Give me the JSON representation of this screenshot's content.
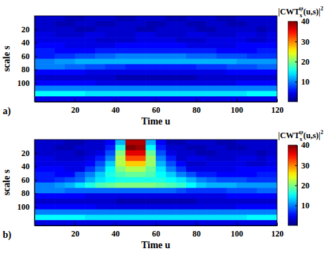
{
  "chart_data": [
    {
      "type": "heatmap",
      "panel_label": "a)",
      "x_label": "Time u",
      "y_label": "scale s",
      "xlim": [
        0,
        120
      ],
      "xticks": [
        20,
        40,
        60,
        80,
        100,
        120
      ],
      "ylim": [
        0,
        128
      ],
      "yticks": [
        20,
        40,
        60,
        80,
        100
      ],
      "x": [
        2.5,
        7.5,
        12.5,
        17.5,
        22.5,
        27.5,
        32.5,
        37.5,
        42.5,
        47.5,
        52.5,
        57.5,
        62.5,
        67.5,
        72.5,
        77.5,
        82.5,
        87.5,
        92.5,
        97.5,
        102.5,
        107.5,
        112.5,
        117.5
      ],
      "y": [
        4,
        12,
        20,
        28,
        36,
        44,
        52,
        60,
        68,
        76,
        84,
        92,
        100,
        108,
        116,
        124
      ],
      "z": [
        [
          3,
          3,
          3,
          2,
          2,
          3,
          3,
          3,
          2,
          2,
          3,
          3,
          3,
          2,
          2,
          3,
          3,
          3,
          2,
          2,
          3,
          3,
          3,
          3
        ],
        [
          3,
          3,
          2,
          2,
          3,
          3,
          2,
          2,
          3,
          3,
          3,
          2,
          2,
          3,
          3,
          2,
          2,
          3,
          3,
          2,
          2,
          3,
          3,
          3
        ],
        [
          3,
          3,
          3,
          3,
          2,
          2,
          3,
          3,
          3,
          3,
          2,
          2,
          3,
          3,
          3,
          3,
          2,
          2,
          3,
          3,
          3,
          3,
          2,
          3
        ],
        [
          4,
          4,
          3,
          3,
          3,
          4,
          4,
          3,
          3,
          3,
          4,
          4,
          3,
          3,
          3,
          4,
          4,
          3,
          3,
          3,
          4,
          4,
          3,
          4
        ],
        [
          4,
          4,
          4,
          4,
          4,
          4,
          3,
          3,
          3,
          3,
          4,
          4,
          4,
          4,
          3,
          3,
          3,
          4,
          4,
          4,
          4,
          3,
          3,
          4
        ],
        [
          5,
          5,
          5,
          4,
          4,
          4,
          4,
          4,
          5,
          5,
          5,
          5,
          5,
          5,
          5,
          4,
          4,
          4,
          4,
          4,
          5,
          5,
          5,
          5
        ],
        [
          6,
          6,
          5,
          5,
          5,
          5,
          6,
          6,
          6,
          6,
          6,
          6,
          6,
          6,
          6,
          6,
          6,
          6,
          5,
          5,
          5,
          5,
          6,
          6
        ],
        [
          6,
          6,
          7,
          7,
          8,
          8,
          9,
          9,
          10,
          10,
          10,
          10,
          10,
          10,
          10,
          9,
          9,
          9,
          8,
          8,
          8,
          7,
          7,
          7
        ],
        [
          10,
          10,
          11,
          11,
          12,
          12,
          12,
          12,
          12,
          12,
          12,
          12,
          12,
          12,
          12,
          12,
          12,
          12,
          12,
          12,
          11,
          11,
          11,
          11
        ],
        [
          10,
          10,
          10,
          9,
          9,
          8,
          8,
          7,
          7,
          6,
          6,
          6,
          6,
          6,
          6,
          6,
          7,
          7,
          7,
          8,
          8,
          8,
          9,
          9
        ],
        [
          5,
          5,
          5,
          5,
          5,
          4,
          4,
          4,
          4,
          4,
          4,
          4,
          4,
          4,
          4,
          4,
          4,
          4,
          4,
          5,
          5,
          5,
          5,
          5
        ],
        [
          3,
          3,
          3,
          3,
          3,
          3,
          3,
          3,
          2,
          2,
          2,
          2,
          2,
          2,
          2,
          2,
          3,
          3,
          3,
          3,
          3,
          3,
          3,
          3
        ],
        [
          5,
          5,
          5,
          5,
          5,
          5,
          4,
          4,
          4,
          4,
          4,
          4,
          4,
          4,
          4,
          4,
          4,
          4,
          4,
          4,
          5,
          5,
          5,
          5
        ],
        [
          10,
          10,
          10,
          10,
          10,
          10,
          10,
          10,
          10,
          10,
          10,
          10,
          10,
          10,
          10,
          10,
          10,
          10,
          10,
          10,
          10,
          10,
          10,
          10
        ],
        [
          15,
          15,
          15,
          15,
          15,
          14,
          14,
          14,
          14,
          14,
          14,
          14,
          14,
          14,
          14,
          14,
          14,
          14,
          14,
          14,
          14,
          15,
          15,
          15
        ],
        [
          4,
          4,
          4,
          4,
          4,
          4,
          4,
          4,
          4,
          4,
          4,
          4,
          4,
          4,
          4,
          4,
          4,
          4,
          4,
          4,
          4,
          4,
          4,
          4
        ]
      ],
      "colorbar": {
        "label": [
          "|CWT",
          "x",
          "ψ",
          "(u,s)|",
          "2"
        ],
        "range": [
          0,
          40
        ],
        "ticks": [
          10,
          20,
          30,
          40
        ]
      }
    },
    {
      "type": "heatmap",
      "panel_label": "b)",
      "x_label": "Time u",
      "y_label": "scale s",
      "xlim": [
        0,
        120
      ],
      "xticks": [
        20,
        40,
        60,
        80,
        100,
        120
      ],
      "ylim": [
        0,
        128
      ],
      "yticks": [
        20,
        40,
        60,
        80,
        100
      ],
      "x": [
        2.5,
        7.5,
        12.5,
        17.5,
        22.5,
        27.5,
        32.5,
        37.5,
        42.5,
        47.5,
        52.5,
        57.5,
        62.5,
        67.5,
        72.5,
        77.5,
        82.5,
        87.5,
        92.5,
        97.5,
        102.5,
        107.5,
        112.5,
        117.5
      ],
      "y": [
        4,
        12,
        20,
        28,
        36,
        44,
        52,
        60,
        68,
        76,
        84,
        92,
        100,
        108,
        116,
        124
      ],
      "z": [
        [
          3,
          3,
          3,
          2,
          2,
          3,
          3,
          5,
          12,
          38,
          38,
          12,
          5,
          2,
          2,
          3,
          3,
          3,
          2,
          2,
          3,
          3,
          3,
          3
        ],
        [
          3,
          3,
          2,
          2,
          3,
          3,
          3,
          6,
          16,
          40,
          39,
          15,
          6,
          3,
          3,
          2,
          2,
          3,
          3,
          2,
          2,
          3,
          3,
          3
        ],
        [
          3,
          3,
          3,
          3,
          2,
          3,
          4,
          8,
          20,
          36,
          36,
          19,
          8,
          4,
          3,
          3,
          2,
          2,
          3,
          3,
          3,
          3,
          2,
          3
        ],
        [
          4,
          4,
          3,
          3,
          3,
          4,
          6,
          10,
          22,
          32,
          32,
          21,
          10,
          6,
          3,
          4,
          4,
          3,
          3,
          3,
          4,
          4,
          3,
          4
        ],
        [
          4,
          4,
          4,
          4,
          4,
          5,
          8,
          13,
          22,
          27,
          27,
          21,
          12,
          8,
          5,
          3,
          3,
          4,
          4,
          4,
          4,
          3,
          3,
          4
        ],
        [
          5,
          5,
          5,
          4,
          4,
          7,
          10,
          15,
          20,
          22,
          22,
          19,
          14,
          10,
          7,
          4,
          4,
          4,
          4,
          4,
          5,
          5,
          5,
          5
        ],
        [
          6,
          6,
          5,
          5,
          8,
          10,
          13,
          16,
          18,
          19,
          19,
          18,
          15,
          13,
          10,
          8,
          6,
          6,
          5,
          5,
          5,
          5,
          6,
          6
        ],
        [
          6,
          6,
          7,
          8,
          9,
          12,
          14,
          15,
          16,
          16,
          16,
          16,
          16,
          15,
          14,
          12,
          10,
          9,
          8,
          8,
          8,
          7,
          7,
          7
        ],
        [
          10,
          10,
          11,
          12,
          14,
          16,
          18,
          19,
          20,
          20,
          20,
          20,
          19,
          18,
          17,
          15,
          13,
          12,
          12,
          12,
          11,
          11,
          11,
          11
        ],
        [
          10,
          10,
          10,
          9,
          9,
          9,
          9,
          9,
          9,
          9,
          9,
          9,
          9,
          9,
          8,
          7,
          7,
          7,
          7,
          8,
          8,
          8,
          9,
          9
        ],
        [
          5,
          5,
          5,
          5,
          5,
          4,
          4,
          4,
          4,
          4,
          4,
          4,
          4,
          4,
          4,
          4,
          4,
          4,
          4,
          5,
          5,
          5,
          5,
          5
        ],
        [
          3,
          3,
          3,
          3,
          3,
          3,
          3,
          3,
          2,
          2,
          2,
          2,
          2,
          2,
          2,
          2,
          3,
          3,
          3,
          3,
          3,
          3,
          3,
          3
        ],
        [
          5,
          5,
          5,
          5,
          5,
          5,
          4,
          4,
          4,
          4,
          4,
          4,
          4,
          4,
          4,
          4,
          4,
          4,
          4,
          4,
          5,
          5,
          5,
          5
        ],
        [
          10,
          10,
          10,
          10,
          10,
          10,
          10,
          10,
          10,
          10,
          10,
          10,
          10,
          10,
          10,
          10,
          10,
          10,
          10,
          10,
          10,
          10,
          10,
          10
        ],
        [
          15,
          15,
          15,
          15,
          15,
          14,
          14,
          14,
          14,
          14,
          14,
          14,
          14,
          14,
          14,
          14,
          14,
          14,
          14,
          14,
          14,
          15,
          15,
          15
        ],
        [
          4,
          4,
          4,
          4,
          4,
          4,
          4,
          4,
          4,
          4,
          4,
          4,
          4,
          4,
          4,
          4,
          4,
          4,
          4,
          4,
          4,
          4,
          4,
          4
        ]
      ],
      "colorbar": {
        "label": [
          "|CWT",
          "x",
          "ψ",
          "(u,s)|",
          "2"
        ],
        "range": [
          0,
          40
        ],
        "ticks": [
          10,
          20,
          30,
          40
        ]
      }
    }
  ]
}
